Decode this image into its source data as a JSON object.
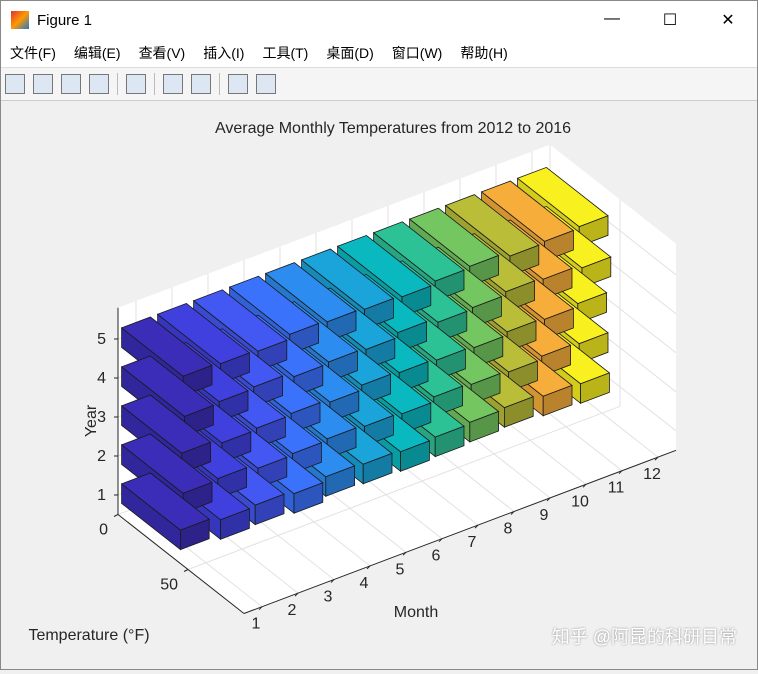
{
  "window": {
    "title": "Figure 1",
    "menu": [
      "文件(F)",
      "编辑(E)",
      "查看(V)",
      "插入(I)",
      "工具(T)",
      "桌面(D)",
      "窗口(W)",
      "帮助(H)"
    ],
    "watermark": "知乎 @阿昆的科研日常"
  },
  "chart_data": {
    "type": "bar3",
    "title": "Average Monthly Temperatures from 2012 to 2016",
    "xlabel": "Month",
    "ylabel": "Year",
    "zlabel": "Temperature (°F)",
    "x": [
      1,
      2,
      3,
      4,
      5,
      6,
      7,
      8,
      9,
      10,
      11,
      12
    ],
    "y": [
      1,
      2,
      3,
      4,
      5
    ],
    "values": [
      [
        42,
        45,
        44,
        46,
        43,
        44,
        45,
        44,
        43,
        42,
        44,
        45
      ],
      [
        44,
        43,
        46,
        45,
        44,
        45,
        46,
        43,
        44,
        45,
        43,
        44
      ],
      [
        43,
        46,
        45,
        44,
        46,
        43,
        44,
        45,
        46,
        44,
        45,
        43
      ],
      [
        45,
        44,
        43,
        46,
        45,
        46,
        43,
        46,
        45,
        43,
        44,
        46
      ],
      [
        44,
        45,
        46,
        43,
        44,
        45,
        46,
        44,
        43,
        46,
        45,
        44
      ]
    ],
    "colors": [
      "#3b2db8",
      "#4040de",
      "#4357f3",
      "#3a72fc",
      "#2c8cef",
      "#1aa4da",
      "#0ab8c0",
      "#2dc296",
      "#74c660",
      "#b9bd38",
      "#f7ad3a",
      "#f9f020"
    ],
    "xlim": [
      0.5,
      12.5
    ],
    "ylim": [
      0.5,
      5.8
    ],
    "zlim": [
      0,
      90
    ],
    "xticks": [
      1,
      2,
      3,
      4,
      5,
      6,
      7,
      8,
      9,
      10,
      11,
      12
    ],
    "yticks": [
      1,
      2,
      3,
      4,
      5
    ],
    "zticks": [
      0,
      50
    ],
    "grid": true
  }
}
